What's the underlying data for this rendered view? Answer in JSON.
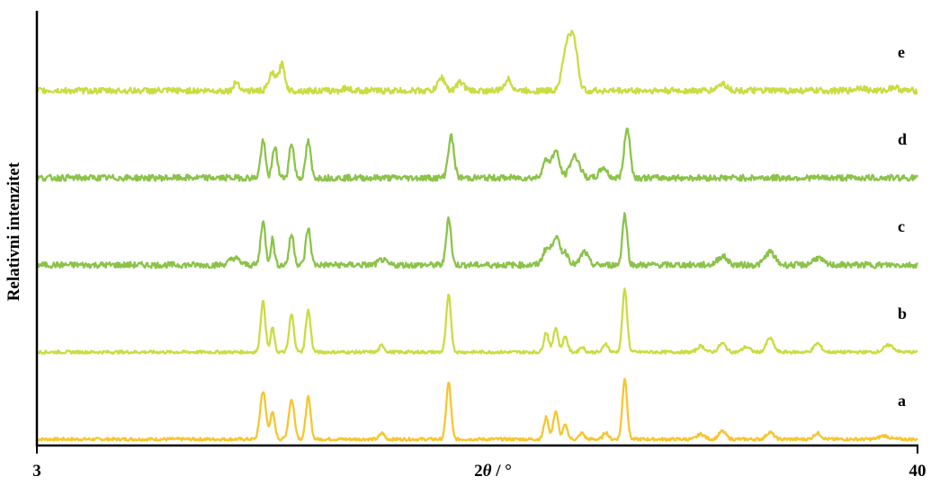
{
  "chart_data": {
    "type": "line",
    "title": "",
    "ylabel": "Relativni intenzitet",
    "xlabel_prefix": "2",
    "xlabel_symbol": "θ",
    "xlabel_unit": " / °",
    "xlim": [
      3,
      40
    ],
    "xticks": [
      "3",
      "40"
    ],
    "grid": false,
    "series": [
      {
        "name": "a",
        "color": "#f7c531",
        "baseline": 0.0,
        "peaks": [
          [
            12.5,
            0.55,
            0.12
          ],
          [
            12.9,
            0.3,
            0.1
          ],
          [
            13.7,
            0.45,
            0.12
          ],
          [
            14.4,
            0.48,
            0.1
          ],
          [
            17.5,
            0.07,
            0.1
          ],
          [
            20.3,
            0.65,
            0.1
          ],
          [
            24.4,
            0.25,
            0.1
          ],
          [
            24.8,
            0.32,
            0.1
          ],
          [
            25.2,
            0.16,
            0.1
          ],
          [
            25.9,
            0.07,
            0.1
          ],
          [
            26.9,
            0.08,
            0.1
          ],
          [
            27.7,
            0.7,
            0.1
          ],
          [
            30.9,
            0.06,
            0.15
          ],
          [
            31.8,
            0.09,
            0.15
          ],
          [
            33.8,
            0.08,
            0.15
          ],
          [
            35.8,
            0.07,
            0.15
          ],
          [
            38.6,
            0.04,
            0.2
          ]
        ]
      },
      {
        "name": "b",
        "color": "#cadc41",
        "baseline": 1.0,
        "peaks": [
          [
            12.5,
            0.58,
            0.1
          ],
          [
            12.9,
            0.28,
            0.08
          ],
          [
            13.7,
            0.43,
            0.1
          ],
          [
            14.4,
            0.48,
            0.1
          ],
          [
            17.5,
            0.08,
            0.1
          ],
          [
            20.3,
            0.65,
            0.1
          ],
          [
            24.4,
            0.23,
            0.1
          ],
          [
            24.8,
            0.28,
            0.1
          ],
          [
            25.2,
            0.18,
            0.1
          ],
          [
            25.9,
            0.06,
            0.1
          ],
          [
            26.9,
            0.1,
            0.1
          ],
          [
            27.7,
            0.72,
            0.1
          ],
          [
            30.9,
            0.07,
            0.15
          ],
          [
            31.8,
            0.1,
            0.15
          ],
          [
            32.8,
            0.06,
            0.15
          ],
          [
            33.8,
            0.16,
            0.15
          ],
          [
            35.8,
            0.1,
            0.15
          ],
          [
            38.8,
            0.08,
            0.2
          ]
        ]
      },
      {
        "name": "c",
        "color": "#8bc34a",
        "baseline": 2.0,
        "peaks": [
          [
            11.3,
            0.08,
            0.2
          ],
          [
            12.5,
            0.5,
            0.1
          ],
          [
            12.9,
            0.3,
            0.08
          ],
          [
            13.7,
            0.35,
            0.1
          ],
          [
            14.4,
            0.42,
            0.1
          ],
          [
            17.5,
            0.06,
            0.15
          ],
          [
            20.3,
            0.55,
            0.1
          ],
          [
            24.4,
            0.18,
            0.15
          ],
          [
            24.8,
            0.32,
            0.15
          ],
          [
            25.2,
            0.14,
            0.15
          ],
          [
            26.0,
            0.15,
            0.15
          ],
          [
            27.7,
            0.58,
            0.1
          ],
          [
            31.8,
            0.1,
            0.2
          ],
          [
            33.8,
            0.15,
            0.2
          ],
          [
            35.8,
            0.08,
            0.2
          ]
        ]
      },
      {
        "name": "d",
        "color": "#8bc34a",
        "baseline": 3.0,
        "peaks": [
          [
            12.5,
            0.42,
            0.1
          ],
          [
            13.0,
            0.36,
            0.1
          ],
          [
            13.7,
            0.4,
            0.1
          ],
          [
            14.4,
            0.42,
            0.1
          ],
          [
            20.4,
            0.48,
            0.12
          ],
          [
            24.4,
            0.2,
            0.15
          ],
          [
            24.8,
            0.3,
            0.15
          ],
          [
            25.6,
            0.25,
            0.2
          ],
          [
            26.8,
            0.12,
            0.15
          ],
          [
            27.8,
            0.58,
            0.12
          ]
        ]
      },
      {
        "name": "e",
        "color": "#cadc41",
        "baseline": 4.0,
        "peaks": [
          [
            11.4,
            0.1,
            0.12
          ],
          [
            12.9,
            0.2,
            0.15
          ],
          [
            13.3,
            0.3,
            0.12
          ],
          [
            16.0,
            0.03,
            0.15
          ],
          [
            20.0,
            0.15,
            0.15
          ],
          [
            20.8,
            0.1,
            0.15
          ],
          [
            22.8,
            0.13,
            0.15
          ],
          [
            25.3,
            0.55,
            0.2
          ],
          [
            25.6,
            0.4,
            0.15
          ],
          [
            31.8,
            0.08,
            0.2
          ],
          [
            37.6,
            0.04,
            0.2
          ],
          [
            39.0,
            0.04,
            0.2
          ]
        ]
      }
    ]
  }
}
